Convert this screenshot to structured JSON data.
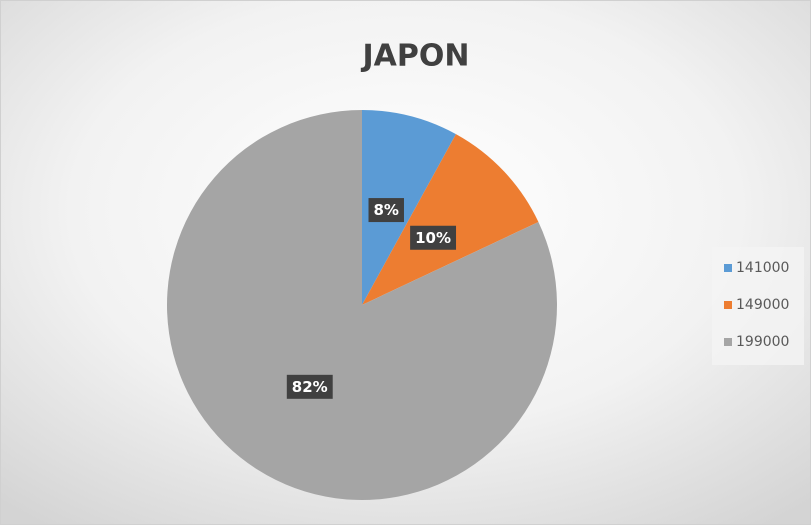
{
  "chart_data": {
    "type": "pie",
    "title": "JAPON",
    "categories": [
      "141000",
      "149000",
      "199000"
    ],
    "values": [
      8,
      10,
      82
    ],
    "value_labels": [
      "8%",
      "10%",
      "82%"
    ],
    "colors": [
      "#5b9bd5",
      "#ed7d31",
      "#a5a5a5"
    ],
    "legend": "right"
  }
}
